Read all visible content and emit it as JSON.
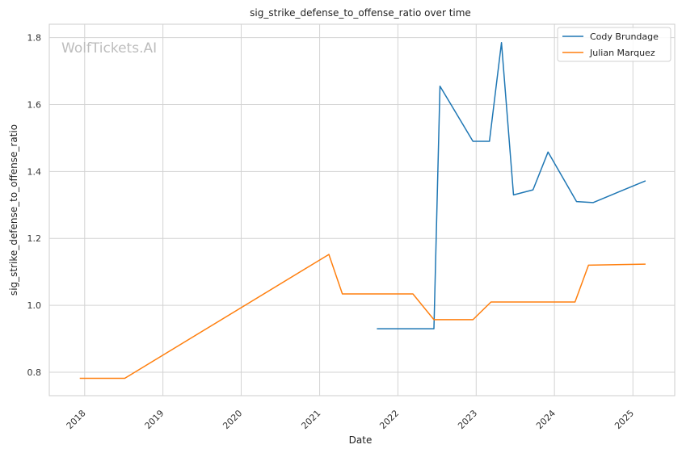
{
  "chart_data": {
    "type": "line",
    "title": "sig_strike_defense_to_offense_ratio over time",
    "xlabel": "Date",
    "ylabel": "sig_strike_defense_to_offense_ratio",
    "watermark": "WolfTickets.AI",
    "x_ticks": [
      "2018",
      "2019",
      "2020",
      "2021",
      "2022",
      "2023",
      "2024",
      "2025"
    ],
    "y_ticks": [
      "0.8",
      "1.0",
      "1.2",
      "1.4",
      "1.6",
      "1.8"
    ],
    "xlim": [
      "2017-07-20",
      "2025-07-15"
    ],
    "ylim": [
      0.73,
      1.84
    ],
    "grid": true,
    "legend_position": "top-right",
    "series": [
      {
        "name": "Cody Brundage",
        "color": "#1f77b4",
        "points": [
          [
            "2021-09-25",
            0.93
          ],
          [
            "2022-06-18",
            0.93
          ],
          [
            "2022-07-16",
            1.655
          ],
          [
            "2022-12-17",
            1.49
          ],
          [
            "2023-03-04",
            1.49
          ],
          [
            "2023-04-29",
            1.785
          ],
          [
            "2023-06-24",
            1.33
          ],
          [
            "2023-09-23",
            1.345
          ],
          [
            "2023-12-02",
            1.458
          ],
          [
            "2024-04-13",
            1.31
          ],
          [
            "2024-06-29",
            1.307
          ],
          [
            "2025-03-01",
            1.372
          ]
        ]
      },
      {
        "name": "Julian Marquez",
        "color": "#ff7f0e",
        "points": [
          [
            "2017-12-09",
            0.782
          ],
          [
            "2018-07-07",
            0.782
          ],
          [
            "2021-02-13",
            1.152
          ],
          [
            "2021-04-17",
            1.034
          ],
          [
            "2022-03-12",
            1.034
          ],
          [
            "2022-06-18",
            0.957
          ],
          [
            "2022-12-17",
            0.957
          ],
          [
            "2023-03-11",
            1.01
          ],
          [
            "2024-04-06",
            1.01
          ],
          [
            "2024-06-08",
            1.12
          ],
          [
            "2025-03-01",
            1.123
          ]
        ]
      }
    ]
  }
}
